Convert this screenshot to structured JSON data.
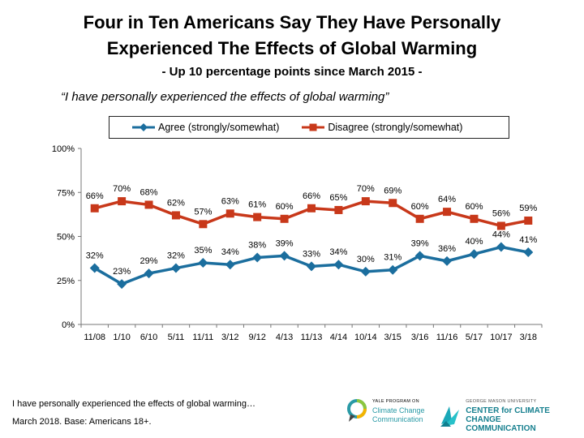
{
  "title_line1": "Four in Ten Americans Say They Have Personally",
  "title_line2": "Experienced The Effects of Global Warming",
  "subtitle": "- Up 10 percentage points since March 2015 -",
  "quote": "“I have personally experienced the effects of global warming”",
  "footer": {
    "line1": "I have personally experienced the effects of global warming…",
    "line2": "March 2018. Base: Americans 18+."
  },
  "logos": {
    "yale_small": "YALE PROGRAM ON",
    "yale_line1": "Climate Change",
    "yale_line2": "Communication",
    "gmu_small": "GEORGE MASON UNIVERSITY",
    "gmu_line1": "CENTER for CLIMATE CHANGE",
    "gmu_line2": "COMMUNICATION"
  },
  "colors": {
    "agree": "#1b6e9e",
    "disagree": "#c8381a",
    "yale_teal": "#2a9aa6"
  },
  "chart_data": {
    "type": "line",
    "categories": [
      "11/08",
      "1/10",
      "6/10",
      "5/11",
      "11/11",
      "3/12",
      "9/12",
      "4/13",
      "11/13",
      "4/14",
      "10/14",
      "3/15",
      "3/16",
      "11/16",
      "5/17",
      "10/17",
      "3/18"
    ],
    "series": [
      {
        "name": "Agree (strongly/somewhat)",
        "marker": "diamond",
        "values": [
          32,
          23,
          29,
          32,
          35,
          34,
          38,
          39,
          33,
          34,
          30,
          31,
          39,
          36,
          40,
          44,
          41
        ]
      },
      {
        "name": "Disagree (strongly/somewhat)",
        "marker": "square",
        "values": [
          66,
          70,
          68,
          62,
          57,
          63,
          61,
          60,
          66,
          65,
          70,
          69,
          60,
          64,
          60,
          56,
          59
        ]
      }
    ],
    "ylim": [
      0,
      100
    ],
    "yticks": [
      "0%",
      "25%",
      "50%",
      "75%",
      "100%"
    ],
    "data_label_suffix": "%",
    "legend": "top",
    "grid": false
  }
}
